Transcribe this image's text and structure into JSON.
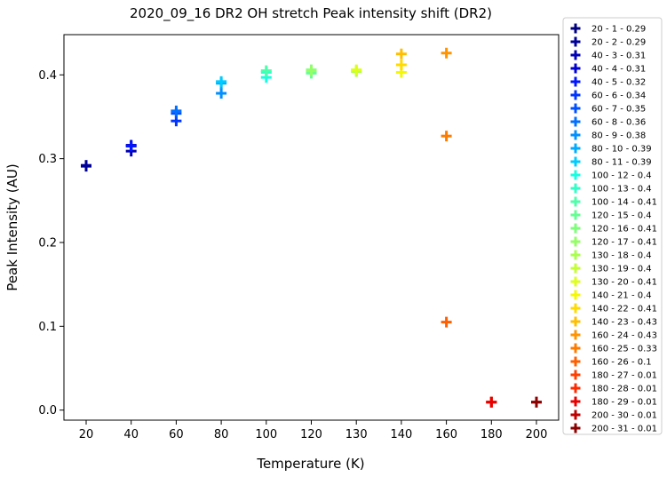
{
  "chart_data": {
    "type": "scatter",
    "title": "2020_09_16 DR2 OH stretch Peak intensity shift (DR2)",
    "xlabel": "Temperature (K)",
    "ylabel": "Peak Intensity (AU)",
    "x_categories": [
      "20",
      "40",
      "60",
      "80",
      "100",
      "120",
      "130",
      "140",
      "160",
      "180",
      "200"
    ],
    "y_ticks": [
      "0.0",
      "0.1",
      "0.2",
      "0.3",
      "0.4"
    ],
    "ylim": [
      -0.012,
      0.448
    ],
    "marker": "plus",
    "grid": false,
    "legend_position": "outside-right",
    "series": [
      {
        "name": "20 - 1 - 0.29",
        "x": "20",
        "y": 0.291,
        "color": "#00007f"
      },
      {
        "name": "20 - 2 - 0.29",
        "x": "20",
        "y": 0.292,
        "color": "#00009a"
      },
      {
        "name": "40 - 3 - 0.31",
        "x": "40",
        "y": 0.309,
        "color": "#0000b6"
      },
      {
        "name": "40 - 4 - 0.31",
        "x": "40",
        "y": 0.316,
        "color": "#0000d1"
      },
      {
        "name": "40 - 5 - 0.32",
        "x": "40",
        "y": 0.315,
        "color": "#0014ff"
      },
      {
        "name": "60 - 6 - 0.34",
        "x": "60",
        "y": 0.345,
        "color": "#0034ff"
      },
      {
        "name": "60 - 7 - 0.35",
        "x": "60",
        "y": 0.354,
        "color": "#0050ff"
      },
      {
        "name": "60 - 8 - 0.36",
        "x": "60",
        "y": 0.357,
        "color": "#0070ff"
      },
      {
        "name": "80 - 9 - 0.38",
        "x": "80",
        "y": 0.378,
        "color": "#0090ff"
      },
      {
        "name": "80 - 10 - 0.39",
        "x": "80",
        "y": 0.39,
        "color": "#00acff"
      },
      {
        "name": "80 - 11 - 0.39",
        "x": "80",
        "y": 0.392,
        "color": "#00ccff"
      },
      {
        "name": "100 - 12 - 0.4",
        "x": "100",
        "y": 0.397,
        "color": "#15ffe1"
      },
      {
        "name": "100 - 13 - 0.4",
        "x": "100",
        "y": 0.403,
        "color": "#30ffc7"
      },
      {
        "name": "100 - 14 - 0.41",
        "x": "100",
        "y": 0.405,
        "color": "#4dffaa"
      },
      {
        "name": "120 - 15 - 0.4",
        "x": "120",
        "y": 0.402,
        "color": "#64ff93"
      },
      {
        "name": "120 - 16 - 0.41",
        "x": "120",
        "y": 0.406,
        "color": "#7dff7a"
      },
      {
        "name": "120 - 17 - 0.41",
        "x": "120",
        "y": 0.405,
        "color": "#93ff64"
      },
      {
        "name": "130 - 18 - 0.4",
        "x": "130",
        "y": 0.404,
        "color": "#aaff4d"
      },
      {
        "name": "130 - 19 - 0.4",
        "x": "130",
        "y": 0.405,
        "color": "#c4ff33"
      },
      {
        "name": "130 - 20 - 0.41",
        "x": "130",
        "y": 0.406,
        "color": "#ddff1a"
      },
      {
        "name": "140 - 21 - 0.4",
        "x": "140",
        "y": 0.403,
        "color": "#f4f802"
      },
      {
        "name": "140 - 22 - 0.41",
        "x": "140",
        "y": 0.412,
        "color": "#ffdb00"
      },
      {
        "name": "140 - 23 - 0.43",
        "x": "140",
        "y": 0.425,
        "color": "#ffbf00"
      },
      {
        "name": "160 - 24 - 0.43",
        "x": "160",
        "y": 0.426,
        "color": "#ff9400"
      },
      {
        "name": "160 - 25 - 0.33",
        "x": "160",
        "y": 0.327,
        "color": "#ff7b00"
      },
      {
        "name": "160 - 26 - 0.1",
        "x": "160",
        "y": 0.105,
        "color": "#ff5f00"
      },
      {
        "name": "180 - 27 - 0.01",
        "x": "180",
        "y": 0.0095,
        "color": "#ff4000"
      },
      {
        "name": "180 - 28 - 0.01",
        "x": "180",
        "y": 0.0095,
        "color": "#ff2a00"
      },
      {
        "name": "180 - 29 - 0.01",
        "x": "180",
        "y": 0.0095,
        "color": "#e80000"
      },
      {
        "name": "200 - 30 - 0.01",
        "x": "200",
        "y": 0.0095,
        "color": "#bf0000"
      },
      {
        "name": "200 - 31 - 0.01",
        "x": "200",
        "y": 0.0095,
        "color": "#8b0000"
      }
    ]
  }
}
